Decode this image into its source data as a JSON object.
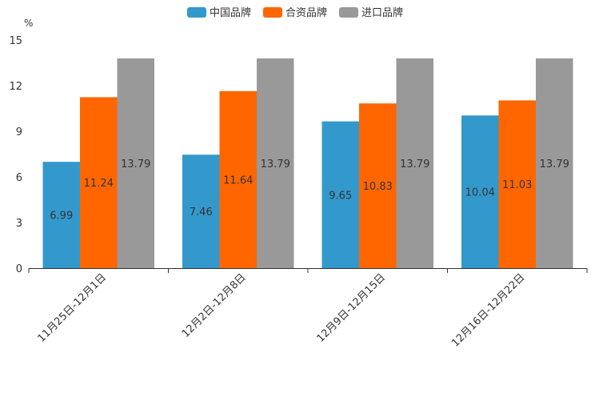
{
  "chart_data": {
    "type": "bar",
    "unit": "%",
    "categories": [
      "11月25日-12月1日",
      "12月2日-12月8日",
      "12月9日-12月15日",
      "12月16日-12月22日"
    ],
    "series": [
      {
        "name": "中国品牌",
        "color": "#3399cc",
        "values": [
          6.99,
          7.46,
          9.65,
          10.04
        ]
      },
      {
        "name": "合资品牌",
        "color": "#ff6600",
        "values": [
          11.24,
          11.64,
          10.83,
          11.03
        ]
      },
      {
        "name": "进口品牌",
        "color": "#999999",
        "values": [
          13.79,
          13.79,
          13.79,
          13.79
        ]
      }
    ],
    "ylim": [
      0,
      15
    ],
    "yticks": [
      0,
      3,
      6,
      9,
      12,
      15
    ],
    "legend_position": "top-center",
    "grid": false
  }
}
